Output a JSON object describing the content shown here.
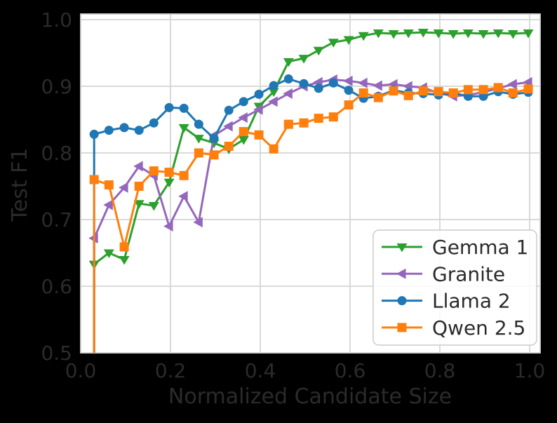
{
  "figure": {
    "background_color": "#000000",
    "plot_background_color": "#ffffff",
    "grid_color": "#d5d5d5",
    "text_color": "#2b2b2b"
  },
  "chart_data": {
    "type": "line",
    "title": "",
    "xlabel": "Normalized Candidate Size",
    "ylabel": "Test F1",
    "x_tick_labels": [
      "0.0",
      "0.2",
      "0.4",
      "0.6",
      "0.8",
      "1.0"
    ],
    "y_tick_labels": [
      "0.5",
      "0.6",
      "0.7",
      "0.8",
      "0.9",
      "1.0"
    ],
    "x_ticks": [
      0.0,
      0.2,
      0.4,
      0.6,
      0.8,
      1.0
    ],
    "y_ticks": [
      0.5,
      0.6,
      0.7,
      0.8,
      0.9,
      1.0
    ],
    "xlim": [
      0.0,
      1.023
    ],
    "ylim": [
      0.5,
      1.008
    ],
    "grid": true,
    "legend_position": "lower right",
    "lines_rise_from_bottom_at_start": true,
    "x": [
      0.03,
      0.063,
      0.097,
      0.13,
      0.163,
      0.197,
      0.23,
      0.263,
      0.297,
      0.33,
      0.363,
      0.397,
      0.43,
      0.463,
      0.497,
      0.53,
      0.563,
      0.597,
      0.63,
      0.663,
      0.697,
      0.73,
      0.763,
      0.797,
      0.83,
      0.863,
      0.897,
      0.93,
      0.963,
      0.997
    ],
    "series": [
      {
        "name": "Gemma 1",
        "color": "#2ca02c",
        "marker": "triangle-down",
        "values": [
          0.633,
          0.65,
          0.64,
          0.724,
          0.721,
          0.756,
          0.838,
          0.822,
          0.815,
          0.806,
          0.82,
          0.87,
          0.892,
          0.937,
          0.942,
          0.954,
          0.966,
          0.97,
          0.976,
          0.98,
          0.979,
          0.98,
          0.981,
          0.98,
          0.979,
          0.98,
          0.979,
          0.98,
          0.979,
          0.98
        ]
      },
      {
        "name": "Granite",
        "color": "#9467bd",
        "marker": "triangle-left",
        "values": [
          0.672,
          0.722,
          0.748,
          0.78,
          0.766,
          0.69,
          0.735,
          0.696,
          0.826,
          0.84,
          0.853,
          0.865,
          0.877,
          0.889,
          0.9,
          0.906,
          0.91,
          0.908,
          0.905,
          0.901,
          0.903,
          0.9,
          0.898,
          0.89,
          0.885,
          0.887,
          0.891,
          0.897,
          0.903,
          0.906
        ]
      },
      {
        "name": "Llama 2",
        "color": "#1f77b4",
        "marker": "circle",
        "values": [
          0.828,
          0.834,
          0.838,
          0.834,
          0.845,
          0.868,
          0.867,
          0.843,
          0.822,
          0.864,
          0.877,
          0.888,
          0.901,
          0.911,
          0.904,
          0.897,
          0.905,
          0.894,
          0.882,
          0.885,
          0.894,
          0.89,
          0.889,
          0.887,
          0.89,
          0.885,
          0.885,
          0.892,
          0.888,
          0.891
        ]
      },
      {
        "name": "Qwen 2.5",
        "color": "#ff7f0e",
        "marker": "square",
        "values": [
          0.76,
          0.752,
          0.659,
          0.75,
          0.773,
          0.771,
          0.766,
          0.8,
          0.797,
          0.81,
          0.832,
          0.827,
          0.806,
          0.843,
          0.845,
          0.852,
          0.854,
          0.872,
          0.89,
          0.883,
          0.893,
          0.886,
          0.893,
          0.892,
          0.89,
          0.895,
          0.895,
          0.898,
          0.89,
          0.896
        ]
      }
    ],
    "legend_labels": [
      "Gemma 1",
      "Granite",
      "Llama 2",
      "Qwen 2.5"
    ]
  }
}
